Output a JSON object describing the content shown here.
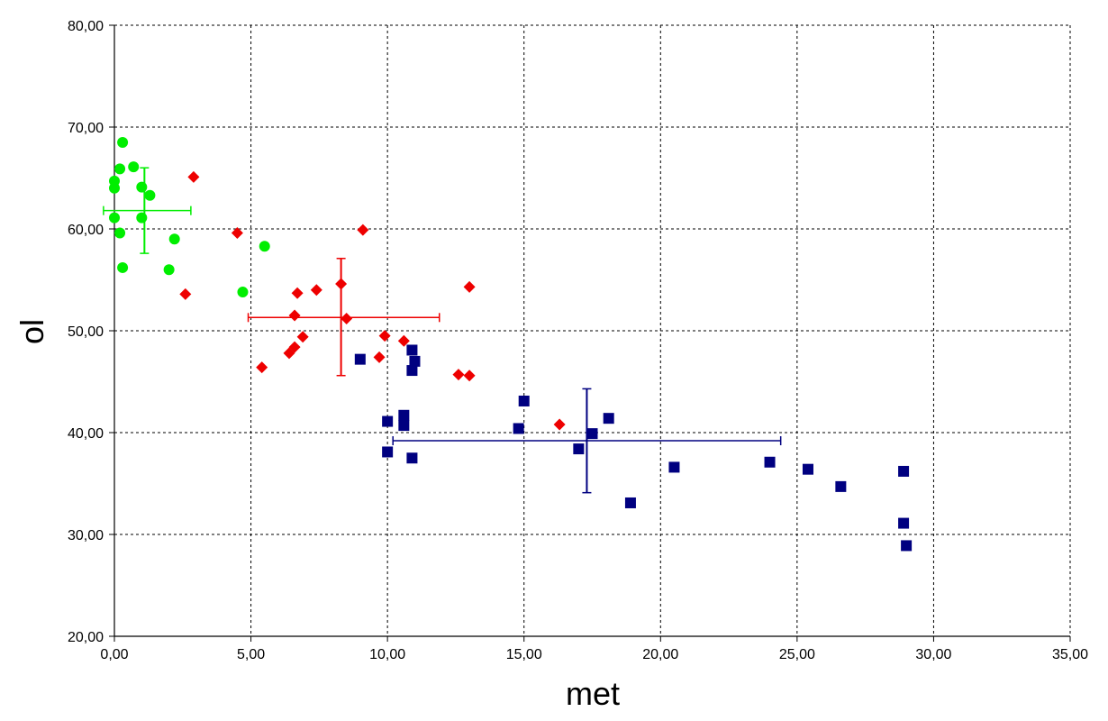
{
  "chart_data": {
    "type": "scatter",
    "title": "",
    "xlabel": "met",
    "ylabel": "ol",
    "xlim": [
      0,
      35
    ],
    "ylim": [
      20,
      80
    ],
    "x_ticks": [
      "0,00",
      "5,00",
      "10,00",
      "15,00",
      "20,00",
      "25,00",
      "30,00",
      "35,00"
    ],
    "y_ticks": [
      "20,00",
      "30,00",
      "40,00",
      "50,00",
      "60,00",
      "70,00",
      "80,00"
    ],
    "grid": true,
    "legend": "none",
    "series": [
      {
        "marker": "circle",
        "color": "#00ee00",
        "points": [
          [
            0.0,
            64.0
          ],
          [
            0.0,
            64.7
          ],
          [
            0.0,
            61.1
          ],
          [
            0.2,
            65.9
          ],
          [
            0.2,
            59.6
          ],
          [
            0.3,
            68.5
          ],
          [
            0.3,
            56.2
          ],
          [
            0.7,
            66.1
          ],
          [
            1.0,
            64.1
          ],
          [
            1.0,
            61.1
          ],
          [
            1.3,
            63.3
          ],
          [
            2.0,
            56.0
          ],
          [
            2.2,
            59.0
          ],
          [
            4.7,
            53.8
          ],
          [
            5.5,
            58.3
          ]
        ],
        "error_bar": {
          "x": 1.1,
          "y": 61.8,
          "x_min": -0.4,
          "x_max": 2.8,
          "y_min": 57.6,
          "y_max": 66.0
        }
      },
      {
        "marker": "diamond",
        "color": "#ee0000",
        "points": [
          [
            2.6,
            53.6
          ],
          [
            2.9,
            65.1
          ],
          [
            4.5,
            59.6
          ],
          [
            5.4,
            46.4
          ],
          [
            6.4,
            47.8
          ],
          [
            6.6,
            48.4
          ],
          [
            6.6,
            51.5
          ],
          [
            6.7,
            53.7
          ],
          [
            6.9,
            49.4
          ],
          [
            7.4,
            54.0
          ],
          [
            8.3,
            54.6
          ],
          [
            8.5,
            51.2
          ],
          [
            9.1,
            59.9
          ],
          [
            9.7,
            47.4
          ],
          [
            9.9,
            49.5
          ],
          [
            10.6,
            49.0
          ],
          [
            12.6,
            45.7
          ],
          [
            13.0,
            45.6
          ],
          [
            13.0,
            54.3
          ],
          [
            16.3,
            40.8
          ]
        ],
        "error_bar": {
          "x": 8.3,
          "y": 51.3,
          "x_min": 4.9,
          "x_max": 11.9,
          "y_min": 45.6,
          "y_max": 57.1
        }
      },
      {
        "marker": "square",
        "color": "#000080",
        "points": [
          [
            9.0,
            47.2
          ],
          [
            10.0,
            41.1
          ],
          [
            10.0,
            38.1
          ],
          [
            10.6,
            41.7
          ],
          [
            10.6,
            40.7
          ],
          [
            10.9,
            48.1
          ],
          [
            11.0,
            47.0
          ],
          [
            10.9,
            46.1
          ],
          [
            10.9,
            37.5
          ],
          [
            14.8,
            40.4
          ],
          [
            15.0,
            43.1
          ],
          [
            17.0,
            38.4
          ],
          [
            17.5,
            39.9
          ],
          [
            18.1,
            41.4
          ],
          [
            18.9,
            33.1
          ],
          [
            20.5,
            36.6
          ],
          [
            24.0,
            37.1
          ],
          [
            25.4,
            36.4
          ],
          [
            26.6,
            34.7
          ],
          [
            28.9,
            36.2
          ],
          [
            28.9,
            31.1
          ],
          [
            29.0,
            28.9
          ]
        ],
        "error_bar": {
          "x": 17.3,
          "y": 39.2,
          "x_min": 10.2,
          "x_max": 24.4,
          "y_min": 34.1,
          "y_max": 44.3
        }
      }
    ]
  }
}
